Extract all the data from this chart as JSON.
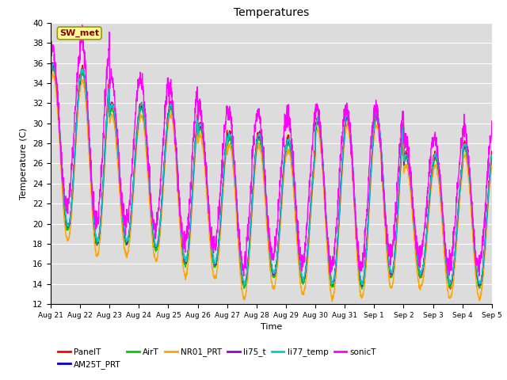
{
  "title": "Temperatures",
  "xlabel": "Time",
  "ylabel": "Temperature (C)",
  "ylim": [
    12,
    40
  ],
  "yticks": [
    12,
    14,
    16,
    18,
    20,
    22,
    24,
    26,
    28,
    30,
    32,
    34,
    36,
    38,
    40
  ],
  "annotation_text": "SW_met",
  "annotation_color": "#8B0000",
  "annotation_bg": "#FFFF99",
  "annotation_border": "#999900",
  "background_color": "#DCDCDC",
  "series": [
    {
      "name": "PanelT",
      "color": "#FF0000",
      "lw": 1.0
    },
    {
      "name": "AM25T_PRT",
      "color": "#0000CC",
      "lw": 1.0
    },
    {
      "name": "AirT",
      "color": "#00CC00",
      "lw": 1.0
    },
    {
      "name": "NR01_PRT",
      "color": "#FFA500",
      "lw": 1.0
    },
    {
      "name": "li75_t",
      "color": "#9900CC",
      "lw": 1.0
    },
    {
      "name": "li77_temp",
      "color": "#00CCCC",
      "lw": 1.0
    },
    {
      "name": "sonicT",
      "color": "#FF00FF",
      "lw": 1.0
    }
  ],
  "xtick_labels": [
    "Aug 21",
    "Aug 22",
    "Aug 23",
    "Aug 24",
    "Aug 25",
    "Aug 26",
    "Aug 27",
    "Aug 28",
    "Aug 29",
    "Aug 30",
    "Aug 31",
    "Sep 1",
    "Sep 2",
    "Sep 3",
    "Sep 4",
    "Sep 5"
  ],
  "n_days": 15,
  "pts_per_day": 144,
  "base_min": [
    19.5,
    18.0,
    18.0,
    17.5,
    16.0,
    15.8,
    13.8,
    14.8,
    14.2,
    13.8,
    13.8,
    14.8,
    14.8,
    13.8,
    13.8
  ],
  "base_max_panel": [
    36.0,
    35.5,
    32.0,
    32.0,
    32.0,
    30.0,
    29.0,
    29.0,
    28.5,
    30.5,
    31.0,
    31.0,
    27.0,
    27.0,
    28.0
  ],
  "base_max_sonic": [
    37.5,
    38.5,
    34.5,
    34.5,
    33.5,
    31.5,
    31.0,
    31.0,
    31.0,
    31.5,
    31.5,
    31.5,
    28.5,
    28.5,
    29.5
  ]
}
